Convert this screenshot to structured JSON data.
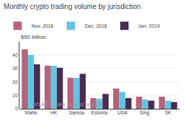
{
  "chart_data": {
    "type": "bar",
    "title": "Monthly crypto trading volume by jurisdiction",
    "ylabel": "$50 billion",
    "annotations": [
      "ATLAS   | Data: CryptoCompare"
    ],
    "categories": [
      "Malta",
      "HK",
      "Samoa",
      "Estonia",
      "USA",
      "Sing.",
      "SK"
    ],
    "series": [
      {
        "name": "Nov. 2018",
        "color": "#b5637a",
        "values": [
          44,
          32,
          23,
          8,
          15,
          9,
          9
        ]
      },
      {
        "name": "Dec. 2018",
        "color": "#63c5e0",
        "values": [
          40,
          32,
          23,
          7.5,
          12.5,
          7,
          6
        ]
      },
      {
        "name": "Jan. 2019",
        "color": "#4a2c52",
        "values": [
          33,
          30.5,
          26,
          11,
          8,
          6,
          5
        ]
      }
    ],
    "ylim": [
      0,
      50
    ],
    "yticks": [
      0,
      10,
      20,
      30,
      40
    ],
    "grid": true,
    "legend": "top"
  }
}
